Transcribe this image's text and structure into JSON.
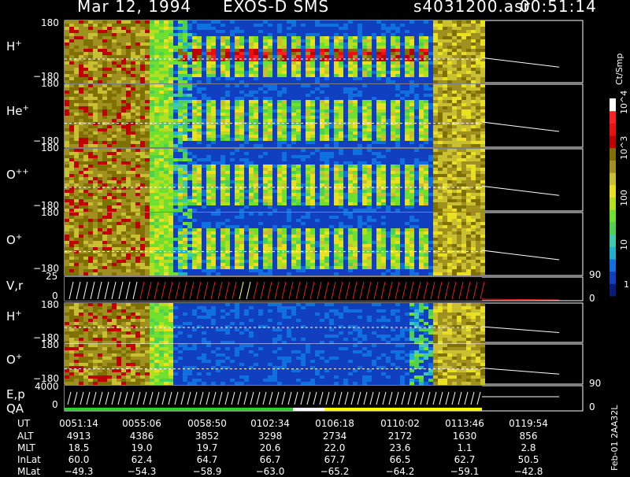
{
  "header": {
    "date": "Mar 12, 1994",
    "instrument": "EXOS-D SMS",
    "file": "s4031200.asr",
    "clock": "00:51:14"
  },
  "colorbar": {
    "unit": "Ct/Smp",
    "labels": [
      "1",
      "10",
      "100",
      "10^3",
      "10^4"
    ],
    "colors": [
      "#0a1a7a",
      "#1040c0",
      "#1070e0",
      "#20b0d0",
      "#40c8b0",
      "#50d050",
      "#70e030",
      "#b0e020",
      "#e8e020",
      "#c8c030",
      "#a09020",
      "#807000",
      "#c00000",
      "#e81010",
      "#ff2020",
      "#ffffff"
    ]
  },
  "panels": [
    {
      "label": "H",
      "sup": "+",
      "ymax": "180",
      "ymin": "−180"
    },
    {
      "label": "He",
      "sup": "+",
      "ymax": "180",
      "ymin": "−180"
    },
    {
      "label": "O",
      "sup": "++",
      "ymax": "180",
      "ymin": "−180"
    },
    {
      "label": "O",
      "sup": "+",
      "ymax": "180",
      "ymin": "−180"
    },
    {
      "label": "V,r",
      "sup": "",
      "ymax": "25",
      "ymin": "0",
      "right_top": "90",
      "right_bot": "0"
    },
    {
      "label": "H",
      "sup": "+",
      "ymax": "180",
      "ymin": "−180"
    },
    {
      "label": "O",
      "sup": "+",
      "ymax": "180",
      "ymin": "−180"
    },
    {
      "label": "E,p",
      "sup": "",
      "label2": "QA",
      "ymax": "4000",
      "ymin": "0",
      "right_top": "90",
      "right_bot": "0"
    }
  ],
  "table": {
    "rows": [
      "UT",
      "ALT",
      "MLT",
      "InLat",
      "MLat"
    ],
    "columns": [
      [
        "0051:14",
        "4913",
        "18.5",
        "60.0",
        "−49.3"
      ],
      [
        "0055:06",
        "4386",
        "19.0",
        "62.4",
        "−54.3"
      ],
      [
        "0058:50",
        "3852",
        "19.7",
        "64.7",
        "−58.9"
      ],
      [
        "0102:34",
        "3298",
        "20.6",
        "66.7",
        "−63.0"
      ],
      [
        "0106:18",
        "2734",
        "22.0",
        "67.7",
        "−65.2"
      ],
      [
        "0110:02",
        "2172",
        "23.6",
        "66.5",
        "−64.2"
      ],
      [
        "0113:46",
        "1630",
        "1.1",
        "62.7",
        "−59.1"
      ],
      [
        "0119:54",
        "856",
        "2.8",
        "50.5",
        "−42.8"
      ]
    ]
  },
  "side_note": "Feb-01 2AA32L",
  "chart_data": {
    "type": "heatmap",
    "title": "Mar 12, 1994   EXOS-D SMS",
    "x_ticks": [
      "0051:14",
      "0055:06",
      "0058:50",
      "0102:34",
      "0106:18",
      "0110:02",
      "0113:46",
      "0119:54"
    ],
    "ion_panels": [
      "H+",
      "He+",
      "O++",
      "O+",
      "V,r",
      "H+",
      "O+",
      "E,p / QA"
    ],
    "colorbar_scale": "log",
    "colorbar_range": [
      1,
      10000
    ]
  }
}
